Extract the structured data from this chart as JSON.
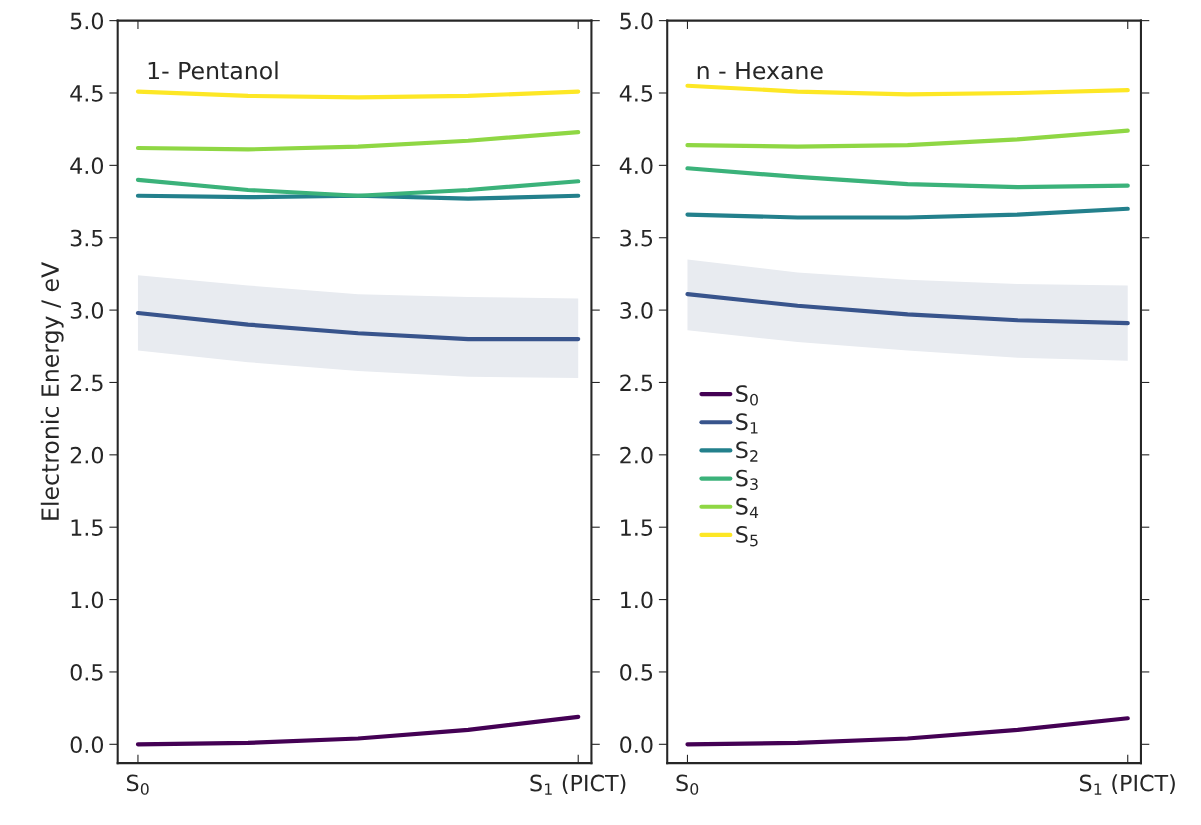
{
  "chart_data": [
    {
      "type": "line",
      "ylabel": "Electronic Energy / eV",
      "annotations": [
        "1- Pentanol"
      ],
      "categories": [
        "S$_{0}$",
        null,
        null,
        null,
        "S$_{1}$ (PICT)"
      ],
      "ylim": [
        -0.13,
        5.0
      ],
      "yticks": [
        {
          "value": 0,
          "label": "0.0"
        },
        0.5,
        {
          "value": 1,
          "label": "1.0"
        },
        1.5,
        {
          "value": 2,
          "label": "2.0"
        },
        2.5,
        {
          "value": 3,
          "label": "3.0"
        },
        3.5,
        {
          "value": 4,
          "label": "4.0"
        },
        4.5,
        {
          "value": 5,
          "label": "5.0"
        }
      ],
      "grid": false,
      "legend": false,
      "series": [
        {
          "color": "#440154",
          "values": [
            0.0,
            0.01,
            0.04,
            0.1,
            0.19
          ]
        },
        {
          "color": "#38548c",
          "values": [
            2.98,
            2.9,
            2.84,
            2.8,
            2.8
          ],
          "lower": [
            2.72,
            2.64,
            2.58,
            2.54,
            2.53
          ],
          "upper": [
            3.24,
            3.17,
            3.11,
            3.09,
            3.08
          ]
        },
        {
          "color": "#23808c",
          "values": [
            3.79,
            3.78,
            3.79,
            3.77,
            3.79
          ]
        },
        {
          "color": "#3bb27a",
          "values": [
            3.9,
            3.83,
            3.79,
            3.83,
            3.89
          ]
        },
        {
          "color": "#8fd744",
          "values": [
            4.12,
            4.11,
            4.13,
            4.17,
            4.23
          ]
        },
        {
          "color": "#fde725",
          "values": [
            4.51,
            4.48,
            4.47,
            4.48,
            4.51
          ]
        }
      ]
    },
    {
      "type": "line",
      "annotations": [
        "n - Hexane"
      ],
      "categories": [
        "S$_{0}$",
        null,
        null,
        null,
        "S$_{1}$ (PICT)"
      ],
      "ylim": [
        -0.13,
        5.0
      ],
      "yticks": [
        {
          "value": 0,
          "label": "0.0"
        },
        0.5,
        {
          "value": 1,
          "label": "1.0"
        },
        1.5,
        {
          "value": 2,
          "label": "2.0"
        },
        2.5,
        {
          "value": 3,
          "label": "3.0"
        },
        3.5,
        {
          "value": 4,
          "label": "4.0"
        },
        4.5,
        {
          "value": 5,
          "label": "5.0"
        }
      ],
      "grid": false,
      "legend": "left",
      "series": [
        {
          "name": "S$_{0}$",
          "color": "#440154",
          "values": [
            0.0,
            0.01,
            0.04,
            0.1,
            0.18
          ]
        },
        {
          "name": "S$_{1}$",
          "color": "#38548c",
          "values": [
            3.11,
            3.03,
            2.97,
            2.93,
            2.91
          ],
          "lower": [
            2.86,
            2.78,
            2.72,
            2.67,
            2.65
          ],
          "upper": [
            3.35,
            3.26,
            3.21,
            3.18,
            3.17
          ]
        },
        {
          "name": "S$_{2}$",
          "color": "#23808c",
          "values": [
            3.66,
            3.64,
            3.64,
            3.66,
            3.7
          ]
        },
        {
          "name": "S$_{3}$",
          "color": "#3bb27a",
          "values": [
            3.98,
            3.92,
            3.87,
            3.85,
            3.86
          ]
        },
        {
          "name": "S$_{4}$",
          "color": "#8fd744",
          "values": [
            4.14,
            4.13,
            4.14,
            4.18,
            4.24
          ]
        },
        {
          "name": "S$_{5}$",
          "color": "#fde725",
          "values": [
            4.55,
            4.51,
            4.49,
            4.5,
            4.52
          ]
        }
      ]
    }
  ]
}
